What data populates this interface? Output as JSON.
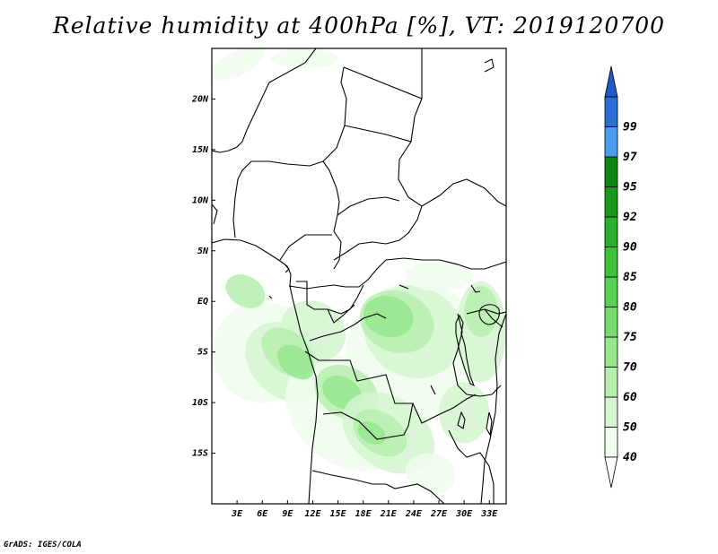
{
  "title": "Relative humidity at 400hPa [%], VT: 2019120700",
  "credit": "GrADS: IGES/COLA",
  "map": {
    "lon_range": [
      0,
      35
    ],
    "lat_range": [
      -20,
      25
    ],
    "lat_ticks": [
      {
        "lat": 20,
        "label": "20N"
      },
      {
        "lat": 15,
        "label": "15N"
      },
      {
        "lat": 10,
        "label": "10N"
      },
      {
        "lat": 5,
        "label": "5N"
      },
      {
        "lat": 0,
        "label": "EQ"
      },
      {
        "lat": -5,
        "label": "5S"
      },
      {
        "lat": -10,
        "label": "10S"
      },
      {
        "lat": -15,
        "label": "15S"
      }
    ],
    "lon_ticks": [
      {
        "lon": 3,
        "label": "3E"
      },
      {
        "lon": 6,
        "label": "6E"
      },
      {
        "lon": 9,
        "label": "9E"
      },
      {
        "lon": 12,
        "label": "12E"
      },
      {
        "lon": 15,
        "label": "15E"
      },
      {
        "lon": 18,
        "label": "18E"
      },
      {
        "lon": 21,
        "label": "21E"
      },
      {
        "lon": 24,
        "label": "24E"
      },
      {
        "lon": 27,
        "label": "27E"
      },
      {
        "lon": 30,
        "label": "30E"
      },
      {
        "lon": 33,
        "label": "33E"
      }
    ]
  },
  "colorbar": {
    "levels": [
      {
        "label": "40",
        "color": "#f0fcee"
      },
      {
        "label": "50",
        "color": "#d5f5d0"
      },
      {
        "label": "60",
        "color": "#b6eeaf"
      },
      {
        "label": "70",
        "color": "#96e68e"
      },
      {
        "label": "75",
        "color": "#76dc6e"
      },
      {
        "label": "80",
        "color": "#58d252"
      },
      {
        "label": "85",
        "color": "#3fc23b"
      },
      {
        "label": "90",
        "color": "#2ab02a"
      },
      {
        "label": "92",
        "color": "#169a1a"
      },
      {
        "label": "95",
        "color": "#0c8610"
      },
      {
        "label": "97",
        "color": "#4a9cf0"
      },
      {
        "label": "99",
        "color": "#2a6fd8"
      }
    ],
    "top_color": "#1e5bc8",
    "bottom_color": "#ffffff"
  },
  "humidity_fields": [
    {
      "level": 40,
      "lon": 3,
      "lat": 23.5,
      "rx": 3.5,
      "ry": 1.2,
      "angle": -25
    },
    {
      "level": 40,
      "lon": 11,
      "lat": 24,
      "rx": 4,
      "ry": 1,
      "angle": 0
    },
    {
      "level": 40,
      "lon": 6,
      "lat": -5,
      "rx": 6,
      "ry": 5,
      "angle": 35
    },
    {
      "level": 50,
      "lon": 9,
      "lat": -6,
      "rx": 5.5,
      "ry": 3.5,
      "angle": 40
    },
    {
      "level": 40,
      "lon": 16,
      "lat": -11,
      "rx": 8,
      "ry": 5,
      "angle": 40
    },
    {
      "level": 40,
      "lon": 24,
      "lat": -5,
      "rx": 8,
      "ry": 7,
      "angle": 20
    },
    {
      "level": 50,
      "lon": 24,
      "lat": -3,
      "rx": 6,
      "ry": 4.5,
      "angle": 25
    },
    {
      "level": 60,
      "lon": 22,
      "lat": -2,
      "rx": 4.5,
      "ry": 3,
      "angle": 20
    },
    {
      "level": 70,
      "lon": 21,
      "lat": -1.5,
      "rx": 3,
      "ry": 2,
      "angle": 15
    },
    {
      "level": 50,
      "lon": 12,
      "lat": -3,
      "rx": 4,
      "ry": 3,
      "angle": 30
    },
    {
      "level": 60,
      "lon": 9,
      "lat": -5,
      "rx": 3.5,
      "ry": 2,
      "angle": 40
    },
    {
      "level": 70,
      "lon": 10,
      "lat": -6,
      "rx": 2.5,
      "ry": 1.4,
      "angle": 40
    },
    {
      "level": 60,
      "lon": 16,
      "lat": -9,
      "rx": 4,
      "ry": 2.5,
      "angle": 30
    },
    {
      "level": 70,
      "lon": 15.5,
      "lat": -9,
      "rx": 2.5,
      "ry": 1.5,
      "angle": 30
    },
    {
      "level": 50,
      "lon": 21,
      "lat": -13,
      "rx": 6,
      "ry": 3.5,
      "angle": 35
    },
    {
      "level": 60,
      "lon": 20,
      "lat": -13,
      "rx": 3.5,
      "ry": 2,
      "angle": 35
    },
    {
      "level": 70,
      "lon": 19,
      "lat": -13,
      "rx": 1.8,
      "ry": 1,
      "angle": 30
    },
    {
      "level": 50,
      "lon": 32,
      "lat": -3,
      "rx": 3,
      "ry": 5,
      "angle": 0
    },
    {
      "level": 60,
      "lon": 32,
      "lat": -1,
      "rx": 2,
      "ry": 2.5,
      "angle": 0
    },
    {
      "level": 50,
      "lon": 30,
      "lat": -11,
      "rx": 3,
      "ry": 3,
      "angle": 0
    },
    {
      "level": 40,
      "lon": 26,
      "lat": -17,
      "rx": 3,
      "ry": 2,
      "angle": 10
    },
    {
      "level": 60,
      "lon": 4,
      "lat": 1,
      "rx": 2.5,
      "ry": 1.5,
      "angle": 30
    },
    {
      "level": 40,
      "lon": 27,
      "lat": 2.5,
      "rx": 4,
      "ry": 1.5,
      "angle": 0
    }
  ]
}
